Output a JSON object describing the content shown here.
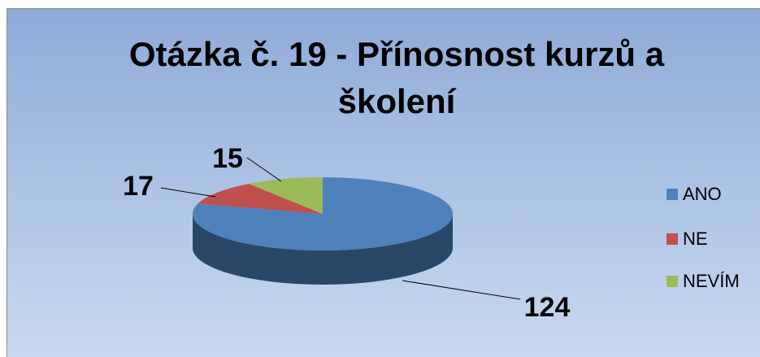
{
  "chart_data": {
    "type": "pie3d",
    "title": "Otázka č. 19 - Přínosnost kurzů a školení",
    "categories": [
      "ANO",
      "NE",
      "NEVÍM"
    ],
    "values": [
      124,
      17,
      15
    ],
    "colors": [
      "#4f81bd",
      "#c0504d",
      "#9bbb59"
    ],
    "legend": "right"
  }
}
